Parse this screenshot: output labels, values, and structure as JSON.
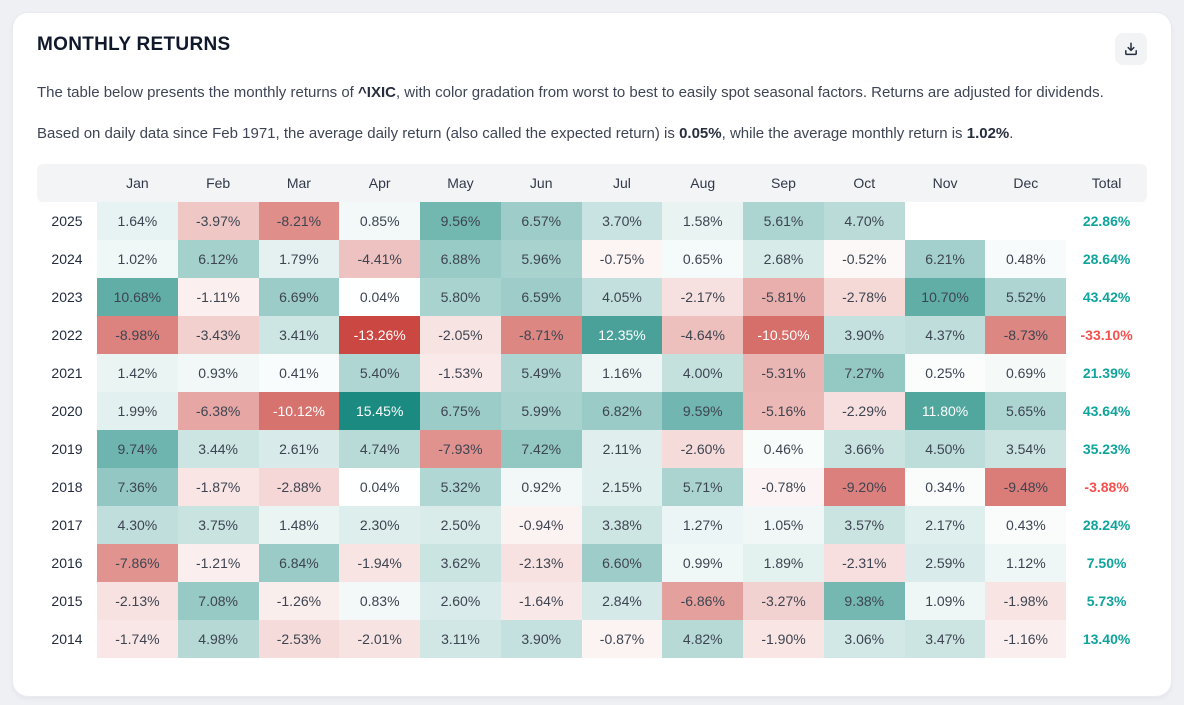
{
  "colors": {
    "page_bg": "#eef0f4",
    "card_bg": "#ffffff",
    "header_row_bg": "#f3f4f6",
    "title_text": "#10182b",
    "body_text": "#3e4554",
    "cell_text_dark": "#3d4451",
    "cell_text_light": "#ffffff",
    "heat_positive": "#1b8a80",
    "heat_negative": "#cb4842",
    "total_positive": "#0fa49c",
    "total_negative": "#f4514e"
  },
  "header": {
    "title": "MONTHLY RETURNS"
  },
  "description": {
    "p1_pre": "The table below presents the monthly returns of ",
    "p1_ticker": "^IXIC",
    "p1_post": ", with color gradation from worst to best to easily spot seasonal factors. Returns are adjusted for dividends.",
    "p2_pre": "Based on daily data since Feb 1971, the average daily return (also called the expected return) is ",
    "p2_daily": "0.05%",
    "p2_mid": ", while the average monthly return is ",
    "p2_monthly": "1.02%",
    "p2_end": "."
  },
  "chart_data": {
    "type": "heatmap",
    "title": "MONTHLY RETURNS",
    "unit": "%",
    "columns": [
      "Jan",
      "Feb",
      "Mar",
      "Apr",
      "May",
      "Jun",
      "Jul",
      "Aug",
      "Sep",
      "Oct",
      "Nov",
      "Dec"
    ],
    "total_label": "Total",
    "rows": [
      {
        "year": "2025",
        "values": [
          1.64,
          -3.97,
          -8.21,
          0.85,
          9.56,
          6.57,
          3.7,
          1.58,
          5.61,
          4.7,
          null,
          null
        ],
        "total": 22.86
      },
      {
        "year": "2024",
        "values": [
          1.02,
          6.12,
          1.79,
          -4.41,
          6.88,
          5.96,
          -0.75,
          0.65,
          2.68,
          -0.52,
          6.21,
          0.48
        ],
        "total": 28.64
      },
      {
        "year": "2023",
        "values": [
          10.68,
          -1.11,
          6.69,
          0.04,
          5.8,
          6.59,
          4.05,
          -2.17,
          -5.81,
          -2.78,
          10.7,
          5.52
        ],
        "total": 43.42
      },
      {
        "year": "2022",
        "values": [
          -8.98,
          -3.43,
          3.41,
          -13.26,
          -2.05,
          -8.71,
          12.35,
          -4.64,
          -10.5,
          3.9,
          4.37,
          -8.73
        ],
        "total": -33.1
      },
      {
        "year": "2021",
        "values": [
          1.42,
          0.93,
          0.41,
          5.4,
          -1.53,
          5.49,
          1.16,
          4.0,
          -5.31,
          7.27,
          0.25,
          0.69
        ],
        "total": 21.39
      },
      {
        "year": "2020",
        "values": [
          1.99,
          -6.38,
          -10.12,
          15.45,
          6.75,
          5.99,
          6.82,
          9.59,
          -5.16,
          -2.29,
          11.8,
          5.65
        ],
        "total": 43.64
      },
      {
        "year": "2019",
        "values": [
          9.74,
          3.44,
          2.61,
          4.74,
          -7.93,
          7.42,
          2.11,
          -2.6,
          0.46,
          3.66,
          4.5,
          3.54
        ],
        "total": 35.23
      },
      {
        "year": "2018",
        "values": [
          7.36,
          -1.87,
          -2.88,
          0.04,
          5.32,
          0.92,
          2.15,
          5.71,
          -0.78,
          -9.2,
          0.34,
          -9.48
        ],
        "total": -3.88
      },
      {
        "year": "2017",
        "values": [
          4.3,
          3.75,
          1.48,
          2.3,
          2.5,
          -0.94,
          3.38,
          1.27,
          1.05,
          3.57,
          2.17,
          0.43
        ],
        "total": 28.24
      },
      {
        "year": "2016",
        "values": [
          -7.86,
          -1.21,
          6.84,
          -1.94,
          3.62,
          -2.13,
          6.6,
          0.99,
          1.89,
          -2.31,
          2.59,
          1.12
        ],
        "total": 7.5
      },
      {
        "year": "2015",
        "values": [
          -2.13,
          7.08,
          -1.26,
          0.83,
          2.6,
          -1.64,
          2.84,
          -6.86,
          -3.27,
          9.38,
          1.09,
          -1.98
        ],
        "total": 5.73
      },
      {
        "year": "2014",
        "values": [
          -1.74,
          4.98,
          -2.53,
          -2.01,
          3.11,
          3.9,
          -0.87,
          4.82,
          -1.9,
          3.06,
          3.47,
          -1.16
        ],
        "total": 13.4
      }
    ]
  }
}
